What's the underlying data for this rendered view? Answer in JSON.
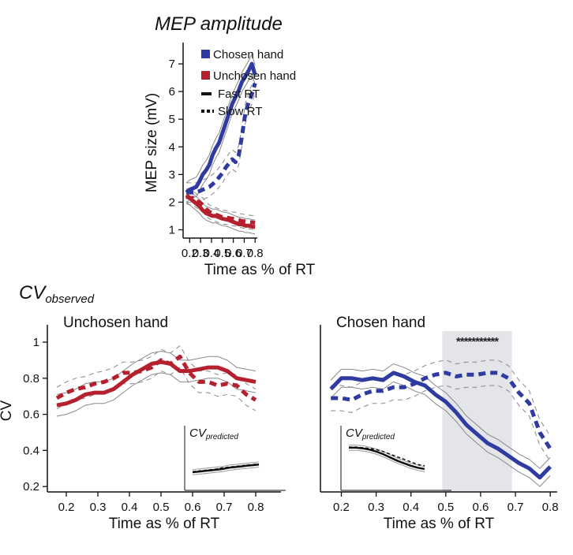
{
  "top_title": "MEP amplitude",
  "section_label": {
    "main": "CV",
    "sub": "observed"
  },
  "legend": {
    "entries": [
      {
        "label": "Chosen hand",
        "color": "#2f3ba0",
        "kind": "swatch"
      },
      {
        "label": "Unchosen hand",
        "color": "#b5202e",
        "kind": "swatch"
      },
      {
        "label": "Fast RT",
        "color": "#111111",
        "kind": "solid"
      },
      {
        "label": "Slow RT",
        "color": "#111111",
        "kind": "dashed"
      }
    ]
  },
  "colors": {
    "chosen": "#2f3ba0",
    "unchosen": "#b5202e",
    "shade": "#e3e5e9",
    "sem": "#888888"
  },
  "chart_data": [
    {
      "id": "mep",
      "type": "line",
      "title": "",
      "xlabel": "Time as % of RT",
      "ylabel": "MEP size (mV)",
      "xlim": [
        0.14,
        0.82
      ],
      "ylim": [
        0.7,
        7.6
      ],
      "xticks": [
        0.2,
        0.3,
        0.4,
        0.5,
        0.6,
        0.7,
        0.8
      ],
      "xtick_labels": [
        "0.2",
        "0.3",
        "0.4",
        "0.5",
        "0.6",
        "0.7",
        "0.8"
      ],
      "yticks": [
        1,
        2,
        3,
        4,
        5,
        6,
        7
      ],
      "ytick_labels": [
        "1",
        "2",
        "3",
        "4",
        "5",
        "6",
        "7"
      ],
      "x": [
        0.17,
        0.2,
        0.23,
        0.26,
        0.29,
        0.32,
        0.35,
        0.38,
        0.41,
        0.44,
        0.47,
        0.5,
        0.53,
        0.56,
        0.59,
        0.62,
        0.65,
        0.68,
        0.71,
        0.74,
        0.77,
        0.8
      ],
      "series": [
        {
          "group": "chosen",
          "style": "solid",
          "sem": 0.35,
          "values": [
            2.35,
            2.45,
            2.5,
            2.55,
            2.75,
            3.0,
            3.15,
            3.35,
            3.7,
            3.95,
            4.15,
            4.5,
            4.85,
            5.2,
            5.55,
            5.8,
            6.05,
            6.35,
            6.55,
            6.75,
            7.0,
            6.6
          ]
        },
        {
          "group": "chosen",
          "style": "dashed",
          "sem": 0.35,
          "values": [
            2.35,
            2.35,
            2.35,
            2.35,
            2.4,
            2.45,
            2.5,
            2.55,
            2.65,
            2.75,
            2.9,
            3.05,
            3.25,
            3.4,
            3.55,
            3.45,
            3.7,
            4.4,
            5.2,
            5.6,
            5.9,
            6.3
          ]
        },
        {
          "group": "unchosen",
          "style": "solid",
          "sem": 0.25,
          "values": [
            2.25,
            2.15,
            2.05,
            1.95,
            1.85,
            1.7,
            1.6,
            1.55,
            1.5,
            1.5,
            1.45,
            1.4,
            1.38,
            1.35,
            1.3,
            1.25,
            1.2,
            1.2,
            1.15,
            1.15,
            1.12,
            1.1
          ]
        },
        {
          "group": "unchosen",
          "style": "dashed",
          "sem": 0.25,
          "values": [
            2.2,
            2.15,
            2.15,
            2.05,
            2.0,
            1.9,
            1.75,
            1.65,
            1.6,
            1.55,
            1.5,
            1.45,
            1.45,
            1.42,
            1.4,
            1.38,
            1.35,
            1.32,
            1.3,
            1.28,
            1.27,
            1.25
          ]
        }
      ]
    },
    {
      "id": "cv_unchosen",
      "type": "line",
      "title": "Unchosen hand",
      "xlabel": "Time as % of RT",
      "ylabel": "CV",
      "xlim": [
        0.14,
        0.88
      ],
      "ylim": [
        0.17,
        1.07
      ],
      "xticks": [
        0.2,
        0.3,
        0.4,
        0.5,
        0.6,
        0.7,
        0.8
      ],
      "xtick_labels": [
        "0.2",
        "0.3",
        "0.4",
        "0.5",
        "0.6",
        "0.7",
        "0.8"
      ],
      "yticks": [
        0.2,
        0.4,
        0.6,
        0.8,
        1.0
      ],
      "ytick_labels": [
        "0.2",
        "0.4",
        "0.6",
        "0.8",
        "1"
      ],
      "x": [
        0.17,
        0.2,
        0.23,
        0.26,
        0.29,
        0.32,
        0.35,
        0.38,
        0.41,
        0.44,
        0.47,
        0.5,
        0.53,
        0.56,
        0.59,
        0.62,
        0.65,
        0.68,
        0.71,
        0.74,
        0.77,
        0.8
      ],
      "series": [
        {
          "group": "unchosen",
          "style": "solid",
          "sem": 0.06,
          "values": [
            0.65,
            0.66,
            0.68,
            0.71,
            0.72,
            0.72,
            0.74,
            0.78,
            0.82,
            0.85,
            0.88,
            0.89,
            0.88,
            0.84,
            0.84,
            0.85,
            0.86,
            0.86,
            0.84,
            0.8,
            0.79,
            0.78
          ]
        },
        {
          "group": "unchosen",
          "style": "dashed",
          "sem": 0.06,
          "values": [
            0.69,
            0.72,
            0.74,
            0.75,
            0.77,
            0.78,
            0.8,
            0.83,
            0.83,
            0.84,
            0.86,
            0.9,
            0.88,
            0.92,
            0.83,
            0.78,
            0.78,
            0.76,
            0.77,
            0.76,
            0.71,
            0.68
          ]
        }
      ],
      "inset": {
        "title_main": "CV",
        "title_sub": "predicted",
        "ylim": [
          0.0,
          1.0
        ],
        "values_fast": [
          0.28,
          0.29,
          0.3,
          0.31,
          0.32,
          0.33,
          0.35,
          0.36,
          0.37,
          0.38,
          0.39,
          0.4
        ],
        "values_slow": [
          0.29,
          0.3,
          0.31,
          0.32,
          0.33,
          0.35,
          0.36,
          0.37,
          0.38,
          0.39,
          0.4,
          0.41
        ]
      }
    },
    {
      "id": "cv_chosen",
      "type": "line",
      "title": "Chosen hand",
      "xlabel": "Time as % of RT",
      "ylabel": "",
      "xlim": [
        0.14,
        0.82
      ],
      "ylim": [
        0.17,
        1.07
      ],
      "xticks": [
        0.2,
        0.3,
        0.4,
        0.5,
        0.6,
        0.7,
        0.8
      ],
      "xtick_labels": [
        "0.2",
        "0.3",
        "0.4",
        "0.5",
        "0.6",
        "0.7",
        "0.8"
      ],
      "yticks": [],
      "ytick_labels": [],
      "shaded_region": [
        0.49,
        0.69
      ],
      "significance": "***********",
      "x": [
        0.17,
        0.2,
        0.23,
        0.26,
        0.29,
        0.32,
        0.35,
        0.38,
        0.41,
        0.44,
        0.47,
        0.5,
        0.53,
        0.56,
        0.59,
        0.62,
        0.65,
        0.68,
        0.71,
        0.74,
        0.77,
        0.8
      ],
      "series": [
        {
          "group": "chosen",
          "style": "solid",
          "sem": 0.05,
          "values": [
            0.74,
            0.8,
            0.8,
            0.79,
            0.8,
            0.79,
            0.83,
            0.81,
            0.78,
            0.76,
            0.71,
            0.67,
            0.61,
            0.54,
            0.49,
            0.44,
            0.41,
            0.37,
            0.33,
            0.3,
            0.25,
            0.31
          ]
        },
        {
          "group": "chosen",
          "style": "dashed",
          "sem": 0.07,
          "values": [
            0.69,
            0.69,
            0.68,
            0.71,
            0.73,
            0.73,
            0.75,
            0.75,
            0.77,
            0.8,
            0.82,
            0.83,
            0.81,
            0.82,
            0.82,
            0.83,
            0.83,
            0.8,
            0.72,
            0.66,
            0.5,
            0.41
          ]
        }
      ],
      "inset": {
        "title_main": "CV",
        "title_sub": "predicted",
        "ylim": [
          0.0,
          1.0
        ],
        "values_fast": [
          0.66,
          0.66,
          0.65,
          0.63,
          0.6,
          0.56,
          0.51,
          0.46,
          0.42,
          0.38,
          0.35,
          0.33
        ],
        "values_slow": [
          0.67,
          0.67,
          0.66,
          0.65,
          0.63,
          0.6,
          0.56,
          0.52,
          0.48,
          0.44,
          0.4,
          0.38
        ]
      }
    }
  ]
}
